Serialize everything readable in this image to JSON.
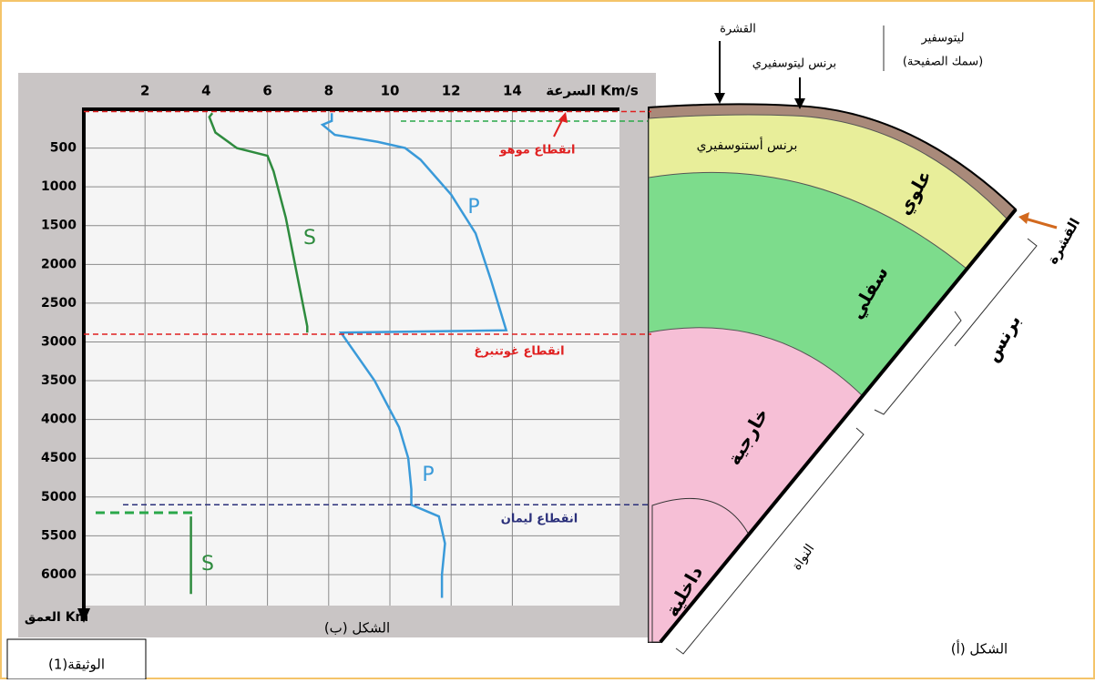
{
  "chart_data": {
    "type": "line",
    "x_label": "السرعة Km/s",
    "y_label": "العمق Km",
    "caption": "الشكل (ب)",
    "xlim": [
      0,
      17.5
    ],
    "xticks": [
      2,
      4,
      6,
      8,
      10,
      12,
      14
    ],
    "ylim": [
      0,
      6400
    ],
    "yticks": [
      500,
      1000,
      1500,
      2000,
      2500,
      3000,
      3500,
      4000,
      4500,
      5000,
      5500,
      6000
    ],
    "y_reversed": true,
    "grid": true,
    "series": [
      {
        "name": "S",
        "color": "#2e8b3e",
        "x": [
          4.2,
          4.1,
          4.3,
          5.0,
          5.5,
          6.0,
          6.2,
          6.6,
          7.0,
          7.3,
          7.3
        ],
        "values": [
          50,
          100,
          300,
          500,
          550,
          600,
          800,
          1400,
          2200,
          2800,
          2880
        ]
      },
      {
        "name": "P",
        "color": "#3a9ad9",
        "x": [
          8.1,
          8.1,
          7.8,
          8.2,
          9.0,
          9.6,
          10.5,
          11.0,
          12.0,
          12.8,
          13.3,
          13.8,
          8.4,
          9.5,
          10.3,
          10.6,
          10.7,
          10.7,
          11.6,
          11.8,
          11.7,
          11.7
        ],
        "values": [
          50,
          150,
          200,
          330,
          380,
          420,
          500,
          650,
          1100,
          1600,
          2200,
          2850,
          2880,
          3500,
          4100,
          4500,
          4900,
          5100,
          5250,
          5600,
          6000,
          6300
        ]
      },
      {
        "name": "S",
        "color": "#2e8b3e",
        "x": [
          3.5,
          3.5
        ],
        "values": [
          5250,
          6250
        ]
      }
    ],
    "discontinuities": [
      {
        "label": "انقطاع موهو",
        "depth": 30,
        "color": "#e02020"
      },
      {
        "label": "انقطاع غوتنبرغ",
        "depth": 2900,
        "color": "#e02020"
      },
      {
        "label": "انقطاع ليمان",
        "depth": 5100,
        "color": "#2a2f7a"
      }
    ]
  },
  "diagram": {
    "crust_top": "القشرة",
    "lithosphere_mantle": "برنس ليتوسفيري",
    "lithosphere": "ليتوسفير",
    "plate_thickness": "(سمك الصفيحة)",
    "asthenosphere": "برنس أستنوسفيري",
    "upper": "علوي",
    "lower": "سفلي",
    "outer": "خارجية",
    "inner": "داخلية",
    "crust_side": "القشرة",
    "mantle": "برنس",
    "core": "النواة",
    "caption": "الشكل (أ)"
  },
  "document_label": "الوثيقة(1)"
}
